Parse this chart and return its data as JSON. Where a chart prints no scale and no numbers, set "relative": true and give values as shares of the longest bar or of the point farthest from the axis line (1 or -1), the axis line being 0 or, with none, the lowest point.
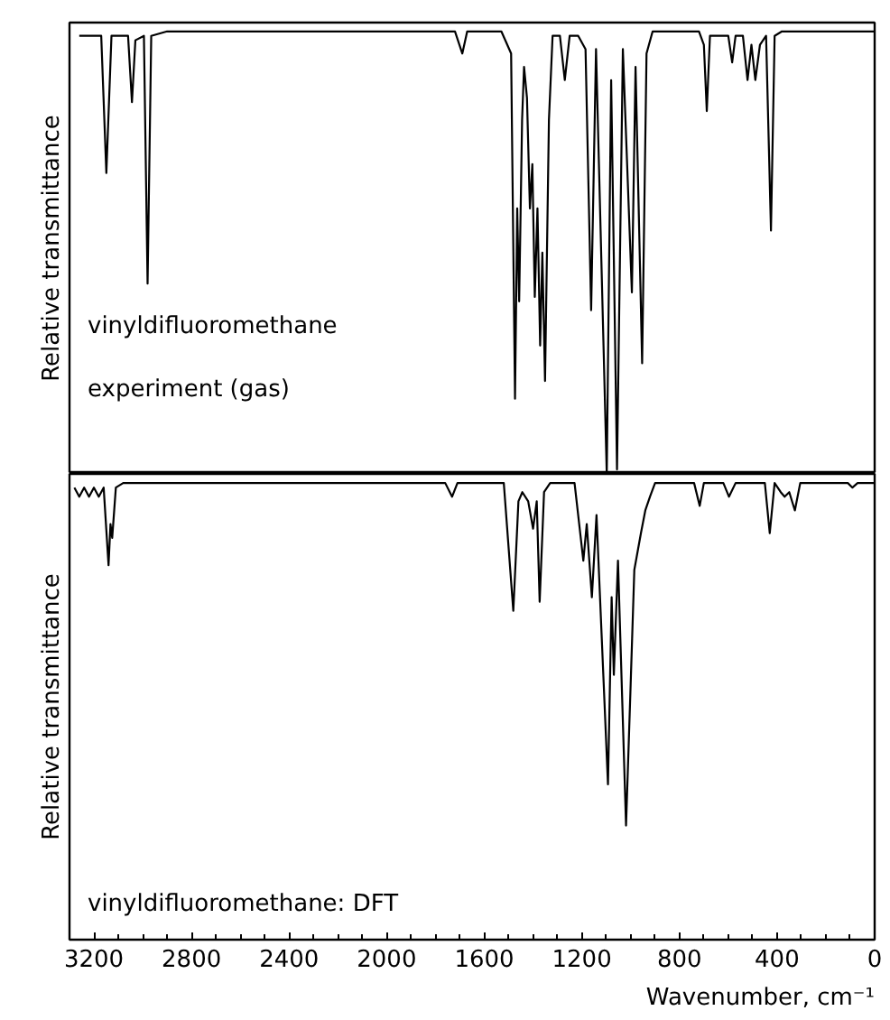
{
  "chart_data": [
    {
      "type": "line",
      "relative": true,
      "ylabel": "Relative transmittance",
      "annotations": [
        "vinyldifluoromethane",
        "experiment (gas)"
      ],
      "xlim": [
        3300,
        0
      ],
      "xticks": [
        3200,
        2800,
        2400,
        2000,
        1600,
        1200,
        800,
        400,
        0
      ],
      "tick_labels": false,
      "series": [
        {
          "color": "#000000",
          "x": [
            3260,
            3170,
            3149,
            3128,
            3060,
            3044,
            3030,
            2995,
            2980,
            2965,
            2900,
            1720,
            1690,
            1670,
            1530,
            1490,
            1474,
            1465,
            1457,
            1445,
            1437,
            1425,
            1413,
            1403,
            1393,
            1382,
            1371,
            1362,
            1351,
            1335,
            1320,
            1290,
            1270,
            1250,
            1215,
            1185,
            1162,
            1142,
            1098,
            1080,
            1056,
            1032,
            995,
            980,
            953,
            935,
            910,
            720,
            700,
            688,
            675,
            600,
            584,
            570,
            540,
            521,
            505,
            489,
            470,
            445,
            425,
            410,
            380,
            0
          ],
          "values": [
            0.99,
            0.99,
            0.68,
            0.99,
            0.99,
            0.84,
            0.98,
            0.99,
            0.43,
            0.99,
            1.0,
            1.0,
            0.95,
            1.0,
            1.0,
            0.95,
            0.17,
            0.6,
            0.39,
            0.8,
            0.92,
            0.85,
            0.6,
            0.7,
            0.4,
            0.6,
            0.29,
            0.5,
            0.21,
            0.8,
            0.99,
            0.99,
            0.89,
            0.99,
            0.99,
            0.96,
            0.37,
            0.96,
            0.0,
            0.89,
            0.01,
            0.96,
            0.41,
            0.92,
            0.25,
            0.95,
            1.0,
            1.0,
            0.97,
            0.82,
            0.99,
            0.99,
            0.93,
            0.99,
            0.99,
            0.89,
            0.97,
            0.89,
            0.97,
            0.99,
            0.55,
            0.99,
            1.0,
            1.0
          ]
        }
      ]
    },
    {
      "type": "line",
      "relative": true,
      "ylabel": "Relative transmittance",
      "xlabel": "Wavenumber, cm⁻¹",
      "annotations": [
        "vinyldifluoromethane: DFT"
      ],
      "xlim": [
        3300,
        0
      ],
      "xticks": [
        3200,
        2800,
        2400,
        2000,
        1600,
        1200,
        800,
        400,
        0
      ],
      "tick_labels": "x",
      "series": [
        {
          "color": "#000000",
          "x": [
            3280,
            3260,
            3240,
            3220,
            3200,
            3180,
            3160,
            3140,
            3132,
            3125,
            3110,
            3080,
            1760,
            1732,
            1710,
            1520,
            1481,
            1460,
            1444,
            1420,
            1400,
            1385,
            1373,
            1355,
            1330,
            1230,
            1194,
            1180,
            1159,
            1140,
            1093,
            1078,
            1069,
            1052,
            1019,
            1000,
            985,
            958,
            940,
            921,
            900,
            740,
            717,
            700,
            620,
            597,
            570,
            450,
            430,
            410,
            385,
            369,
            350,
            327,
            305,
            110,
            91,
            70,
            0
          ],
          "values": [
            0.99,
            0.97,
            0.99,
            0.97,
            0.99,
            0.97,
            0.99,
            0.82,
            0.91,
            0.88,
            0.99,
            1.0,
            1.0,
            0.97,
            1.0,
            1.0,
            0.72,
            0.96,
            0.98,
            0.96,
            0.9,
            0.96,
            0.74,
            0.98,
            1.0,
            1.0,
            0.83,
            0.91,
            0.75,
            0.93,
            0.34,
            0.75,
            0.58,
            0.83,
            0.25,
            0.56,
            0.81,
            0.89,
            0.94,
            0.97,
            1.0,
            1.0,
            0.95,
            1.0,
            1.0,
            0.97,
            1.0,
            1.0,
            0.89,
            1.0,
            0.98,
            0.97,
            0.98,
            0.94,
            1.0,
            1.0,
            0.99,
            1.0,
            1.0
          ]
        }
      ]
    }
  ]
}
